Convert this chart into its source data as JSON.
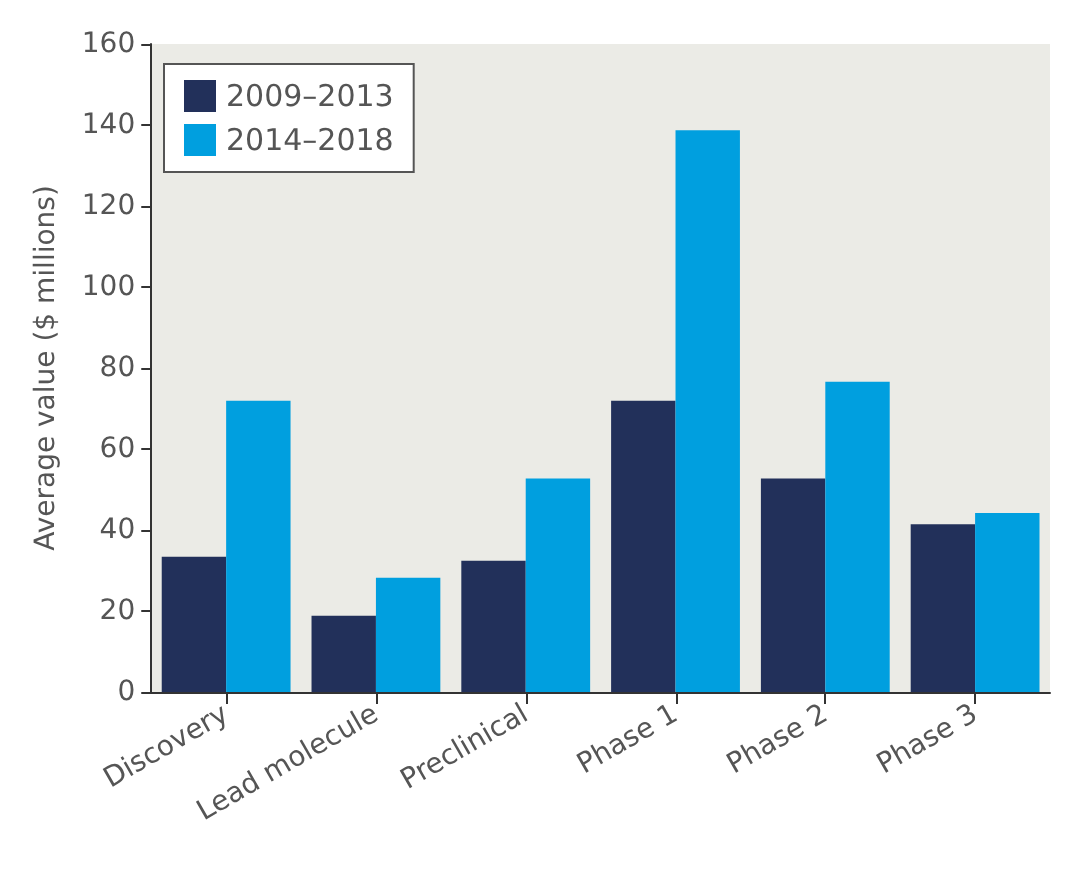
{
  "chart_data": {
    "type": "bar",
    "ylabel": "Average value ($ millions)",
    "categories": [
      "Discovery",
      "Lead molecule",
      "Preclinical",
      "Phase 1",
      "Phase 2",
      "Phase 3"
    ],
    "series": [
      {
        "name": "2009–2013",
        "color": "#22305a",
        "values": [
          33.4,
          18.8,
          32.4,
          71.9,
          52.7,
          41.4
        ]
      },
      {
        "name": "2014–2018",
        "color": "#009fdf",
        "values": [
          71.9,
          28.2,
          52.7,
          138.7,
          76.6,
          44.2
        ]
      }
    ],
    "ylim": [
      0,
      160
    ],
    "yticks": [
      0,
      20,
      40,
      60,
      80,
      100,
      120,
      140,
      160
    ],
    "grid": false,
    "legend": "top left"
  }
}
